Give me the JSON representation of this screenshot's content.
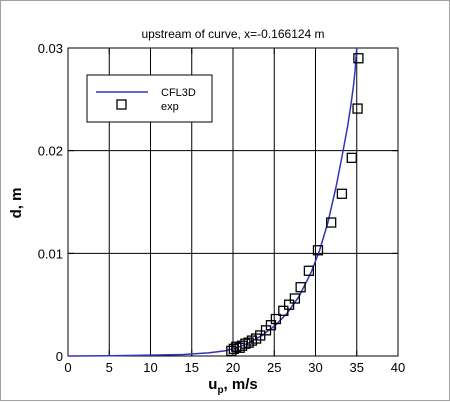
{
  "chart_data": {
    "type": "line",
    "title": "upstream of curve, x=-0.166124 m",
    "xlabel": {
      "main": "u",
      "sub": "p",
      "rest": ", m/s"
    },
    "ylabel": "d, m",
    "xlim": [
      0,
      40
    ],
    "ylim": [
      0,
      0.03
    ],
    "x_ticks": [
      0,
      5,
      10,
      15,
      20,
      25,
      30,
      35,
      40
    ],
    "y_ticks": [
      0,
      0.01,
      0.02,
      0.03
    ],
    "x_tick_labels": [
      "0",
      "5",
      "10",
      "15",
      "20",
      "25",
      "30",
      "35",
      "40"
    ],
    "y_tick_labels": [
      "0",
      "0.01",
      "0.02",
      "0.03"
    ],
    "grid": true,
    "legend_position": "top-left",
    "series": [
      {
        "name": "CFL3D",
        "kind": "line",
        "color": "#3333bb",
        "x": [
          0,
          5,
          10,
          14,
          17,
          19,
          20.5,
          22,
          23.5,
          25,
          26.5,
          28,
          29.5,
          30.5,
          31.5,
          32.5,
          33.3,
          33.9,
          34.3,
          34.6,
          34.8,
          34.9,
          35.0
        ],
        "y": [
          0,
          3e-05,
          8e-05,
          0.00015,
          0.0003,
          0.0005,
          0.0008,
          0.0013,
          0.002,
          0.0029,
          0.0041,
          0.0058,
          0.0082,
          0.0103,
          0.013,
          0.0165,
          0.0198,
          0.0224,
          0.0245,
          0.0263,
          0.0278,
          0.029,
          0.03
        ]
      },
      {
        "name": "exp",
        "kind": "scatter",
        "marker": "open-square",
        "color": "#000000",
        "x": [
          19.8,
          20.1,
          20.4,
          20.8,
          21.1,
          21.5,
          21.9,
          22.3,
          22.8,
          23.3,
          24.0,
          24.6,
          25.2,
          26.1,
          26.8,
          27.5,
          28.2,
          29.2,
          30.3,
          31.9,
          33.2,
          34.4,
          35.1,
          35.2
        ],
        "y": [
          0.0005,
          0.0007,
          0.0009,
          0.0008,
          0.001,
          0.0012,
          0.0013,
          0.0015,
          0.0017,
          0.002,
          0.0025,
          0.003,
          0.0036,
          0.0044,
          0.005,
          0.0056,
          0.0067,
          0.0083,
          0.0103,
          0.013,
          0.0158,
          0.0193,
          0.0241,
          0.029
        ]
      }
    ]
  }
}
